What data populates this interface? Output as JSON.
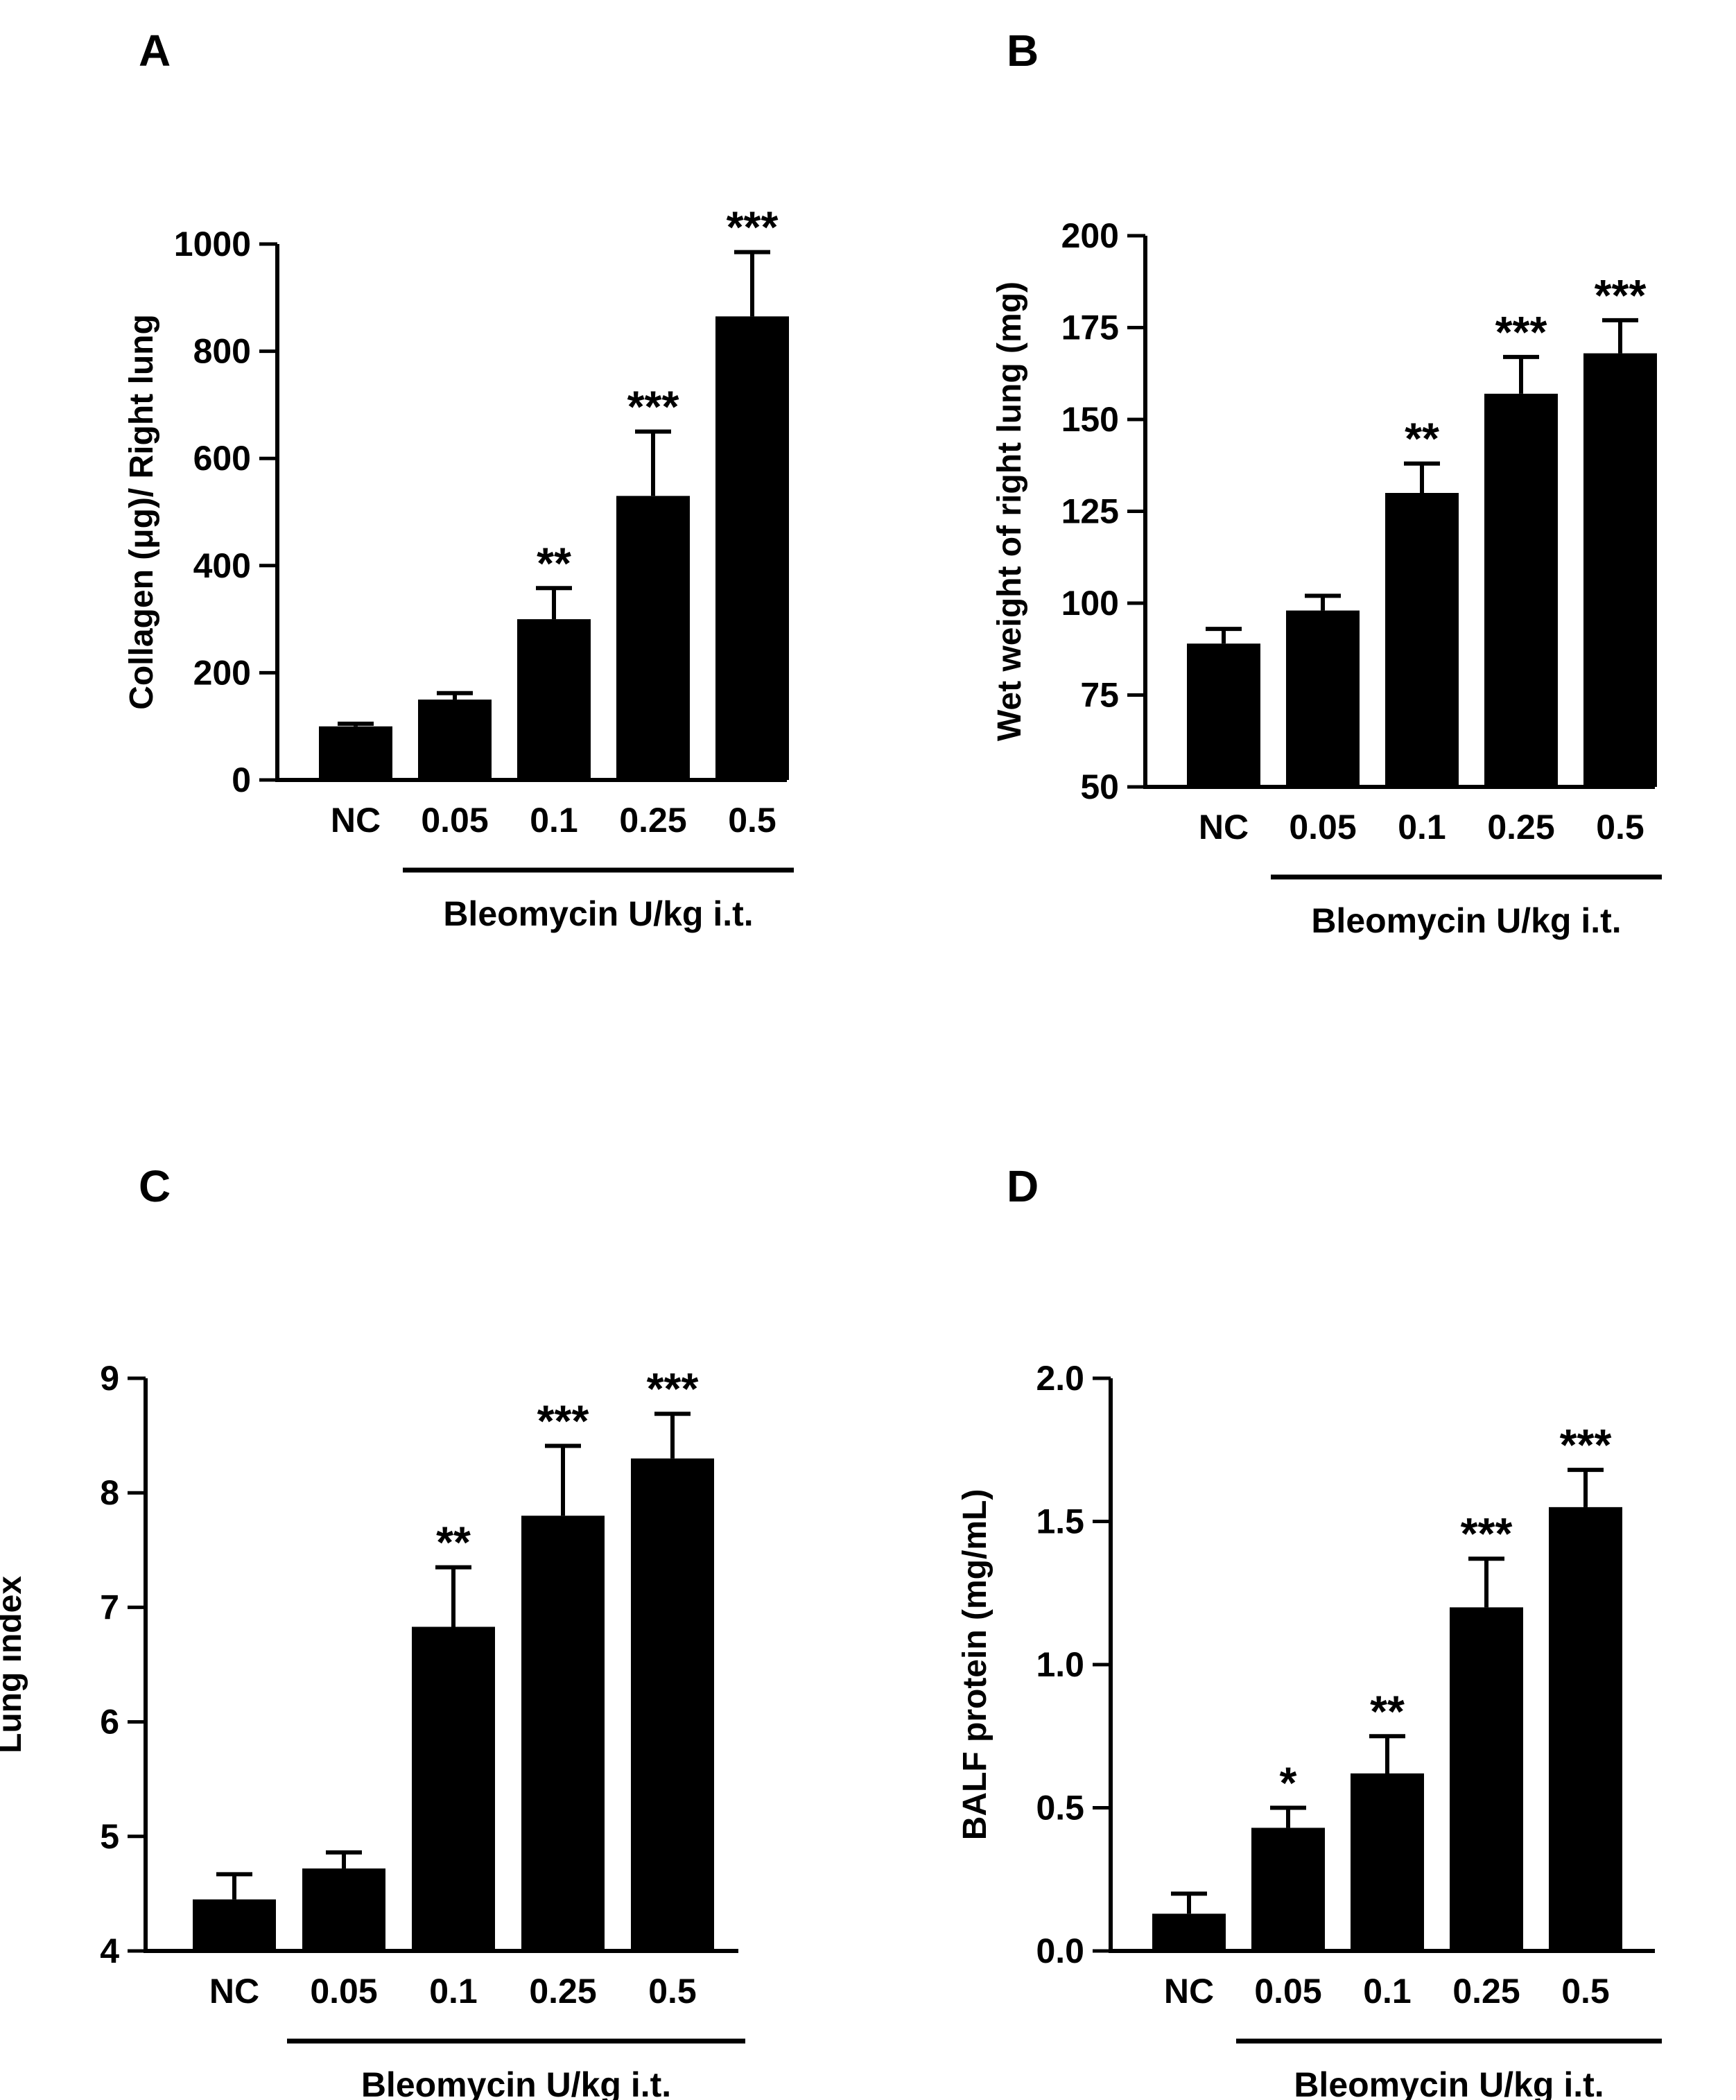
{
  "chart_data": [
    {
      "type": "bar",
      "panel": "A",
      "categories": [
        "NC",
        "0.05",
        "0.1",
        "0.25",
        "0.5"
      ],
      "values": [
        100,
        150,
        300,
        530,
        865
      ],
      "errors": [
        5,
        12,
        58,
        120,
        120
      ],
      "significance": [
        "",
        "",
        "**",
        "***",
        "***"
      ],
      "ylabel": "Collagen (μg)/ Right lung",
      "xlabel": "",
      "group_label": "Bleomycin U/kg i.t.",
      "ylim": [
        0,
        1000
      ],
      "yticks": [
        "0",
        "200",
        "400",
        "600",
        "800",
        "1000"
      ]
    },
    {
      "type": "bar",
      "panel": "B",
      "categories": [
        "NC",
        "0.05",
        "0.1",
        "0.25",
        "0.5"
      ],
      "values": [
        89,
        98,
        130,
        157,
        168
      ],
      "errors": [
        4,
        4,
        8,
        10,
        9
      ],
      "significance": [
        "",
        "",
        "**",
        "***",
        "***"
      ],
      "ylabel": "Wet weight of right lung (mg)",
      "xlabel": "",
      "group_label": "Bleomycin U/kg i.t.",
      "ylim": [
        50,
        200
      ],
      "yticks": [
        "50",
        "75",
        "100",
        "125",
        "150",
        "175",
        "200"
      ]
    },
    {
      "type": "bar",
      "panel": "C",
      "categories": [
        "NC",
        "0.05",
        "0.1",
        "0.25",
        "0.5"
      ],
      "values": [
        4.45,
        4.72,
        6.83,
        7.8,
        8.3
      ],
      "errors": [
        0.22,
        0.14,
        0.52,
        0.61,
        0.39
      ],
      "significance": [
        "",
        "",
        "**",
        "***",
        "***"
      ],
      "ylabel": "Lung index",
      "xlabel": "",
      "group_label": "Bleomycin U/kg i.t.",
      "ylim": [
        4,
        9
      ],
      "yticks": [
        "4",
        "5",
        "6",
        "7",
        "8",
        "9"
      ]
    },
    {
      "type": "bar",
      "panel": "D",
      "categories": [
        "NC",
        "0.05",
        "0.1",
        "0.25",
        "0.5"
      ],
      "values": [
        0.13,
        0.43,
        0.62,
        1.2,
        1.55
      ],
      "errors": [
        0.07,
        0.07,
        0.13,
        0.17,
        0.13
      ],
      "significance": [
        "",
        "*",
        "**",
        "***",
        "***"
      ],
      "ylabel": "BALF protein (mg/mL)",
      "xlabel": "",
      "group_label": "Bleomycin U/kg i.t.",
      "ylim": [
        0,
        2.0
      ],
      "yticks": [
        "0.0",
        "0.5",
        "1.0",
        "1.5",
        "2.0"
      ]
    }
  ]
}
